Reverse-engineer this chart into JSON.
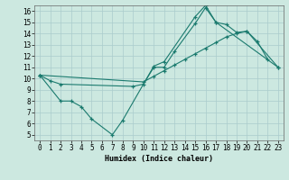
{
  "title": "",
  "xlabel": "Humidex (Indice chaleur)",
  "bg_color": "#cce8e0",
  "grid_color": "#aacccc",
  "line_color": "#1a7a6e",
  "xlim": [
    -0.5,
    23.5
  ],
  "ylim": [
    4.5,
    16.5
  ],
  "xticks": [
    0,
    1,
    2,
    3,
    4,
    5,
    6,
    7,
    8,
    9,
    10,
    11,
    12,
    13,
    14,
    15,
    16,
    17,
    18,
    19,
    20,
    21,
    22,
    23
  ],
  "yticks": [
    5,
    6,
    7,
    8,
    9,
    10,
    11,
    12,
    13,
    14,
    15,
    16
  ],
  "line1_x": [
    0,
    1,
    2,
    9,
    10,
    11,
    12,
    13,
    15,
    16,
    17,
    23
  ],
  "line1_y": [
    10.3,
    9.8,
    9.5,
    9.3,
    9.5,
    11.0,
    11.0,
    12.4,
    14.9,
    16.3,
    15.0,
    11.0
  ],
  "line2_x": [
    0,
    2,
    3,
    4,
    5,
    7,
    8,
    11,
    12,
    15,
    16,
    17,
    18,
    19,
    20,
    21,
    22
  ],
  "line2_y": [
    10.3,
    8.0,
    8.0,
    7.5,
    6.4,
    5.0,
    6.3,
    11.1,
    11.5,
    15.5,
    16.5,
    15.0,
    14.8,
    14.1,
    14.2,
    13.3,
    11.7
  ],
  "line3_x": [
    0,
    10,
    11,
    12,
    13,
    14,
    15,
    16,
    17,
    18,
    19,
    20,
    23
  ],
  "line3_y": [
    10.3,
    9.7,
    10.2,
    10.7,
    11.2,
    11.7,
    12.2,
    12.7,
    13.2,
    13.7,
    14.0,
    14.2,
    11.0
  ]
}
